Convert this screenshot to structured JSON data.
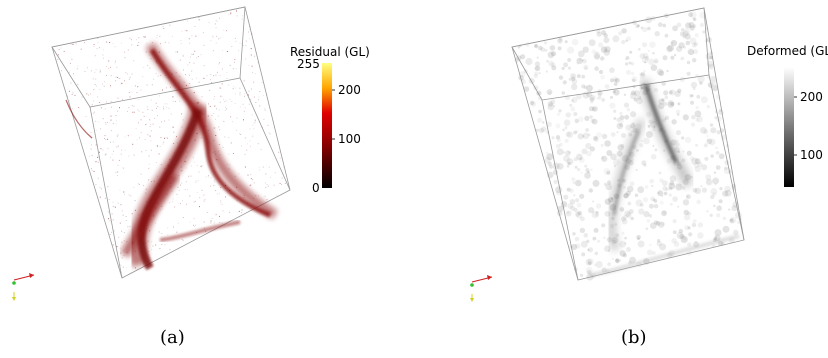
{
  "panels": [
    {
      "id": "a",
      "caption": "(a)",
      "colorbar": {
        "title": "Residual (GL)",
        "ticks": [
          "255",
          "200",
          "100",
          "0"
        ],
        "gradient": [
          "#000000",
          "#8b0000",
          "#e00000",
          "#ffa500",
          "#ffff80"
        ]
      }
    },
    {
      "id": "b",
      "caption": "(b)",
      "colorbar": {
        "title": "Deformed (GL)",
        "ticks": [
          "200",
          "100"
        ],
        "gradient": [
          "#000000",
          "#6e6e6e",
          "#ffffff"
        ]
      }
    }
  ],
  "colors": {
    "crack_red": "#8b0c0c",
    "crack_gray": "#555555",
    "frame": "#9a9a9a"
  }
}
